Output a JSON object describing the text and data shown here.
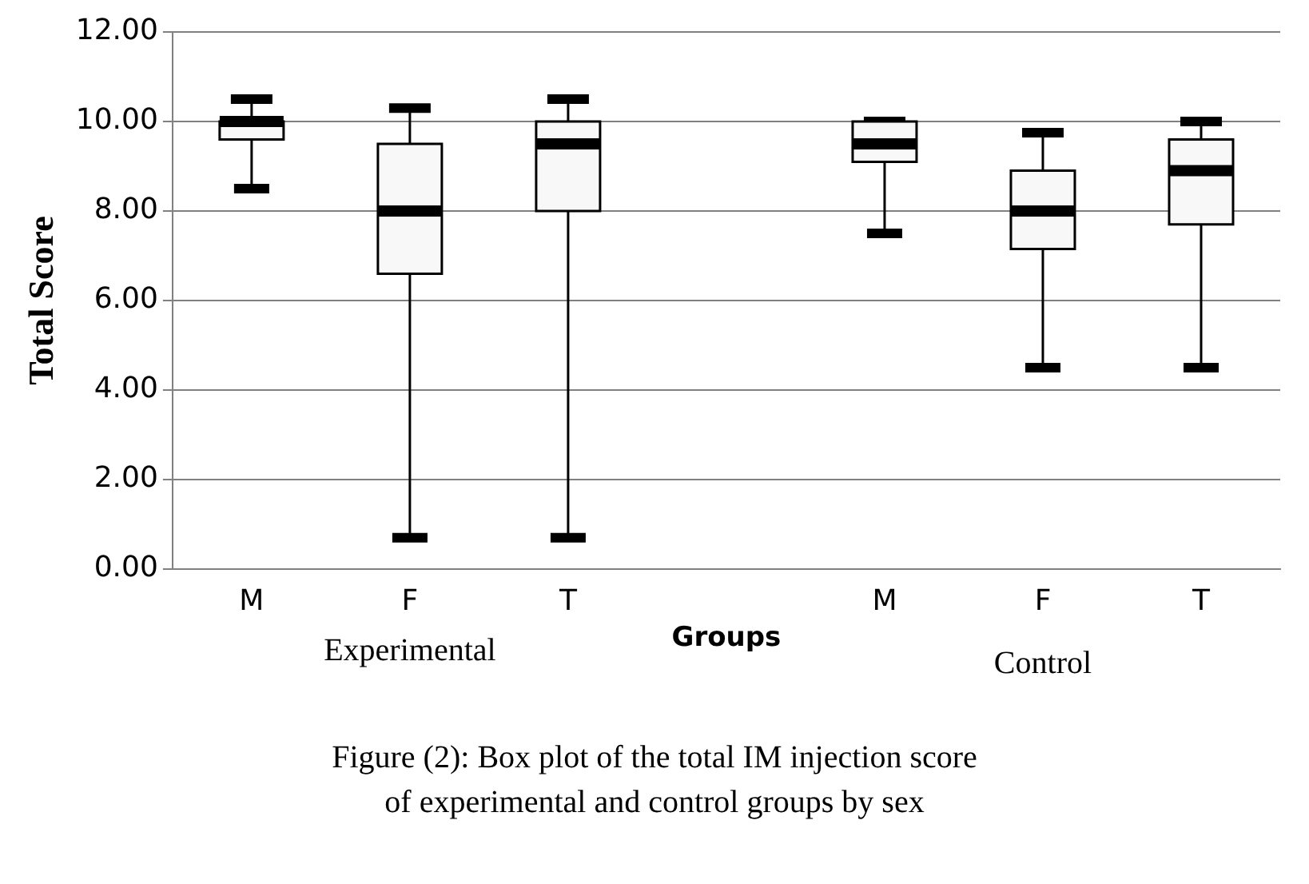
{
  "chart_data": {
    "type": "box",
    "xlabel": "Groups",
    "ylabel": "Total Score",
    "categories": [
      "M",
      "F",
      "T",
      null,
      "M",
      "F",
      "T"
    ],
    "boxes": [
      {
        "low": 8.5,
        "q1": 9.6,
        "median": 10.0,
        "q3": 10.0,
        "high": 10.5
      },
      {
        "low": 0.7,
        "q1": 6.6,
        "median": 8.0,
        "q3": 9.5,
        "high": 10.3
      },
      {
        "low": 0.7,
        "q1": 8.0,
        "median": 9.5,
        "q3": 10.0,
        "high": 10.5
      },
      null,
      {
        "low": 7.5,
        "q1": 9.1,
        "median": 9.5,
        "q3": 10.0,
        "high": 10.0
      },
      {
        "low": 4.5,
        "q1": 7.15,
        "median": 8.0,
        "q3": 8.9,
        "high": 9.75
      },
      {
        "low": 4.5,
        "q1": 7.7,
        "median": 8.9,
        "q3": 9.6,
        "high": 10.0
      }
    ],
    "color": "#f8f8f8",
    "ylim": [
      0,
      12
    ],
    "yticks": [
      {
        "value": 0,
        "label": "0.00"
      },
      {
        "value": 2,
        "label": "2.00"
      },
      {
        "value": 4,
        "label": "4.00"
      },
      {
        "value": 6,
        "label": "6.00"
      },
      {
        "value": 8,
        "label": "8.00"
      },
      {
        "value": 10,
        "label": "10.00"
      },
      {
        "value": 12,
        "label": "12.00"
      }
    ],
    "grid": "y",
    "annotations": [
      "Experimental",
      "Control",
      "Figure (2): Box plot of the total IM injection score of experimental and control groups by sex"
    ]
  }
}
